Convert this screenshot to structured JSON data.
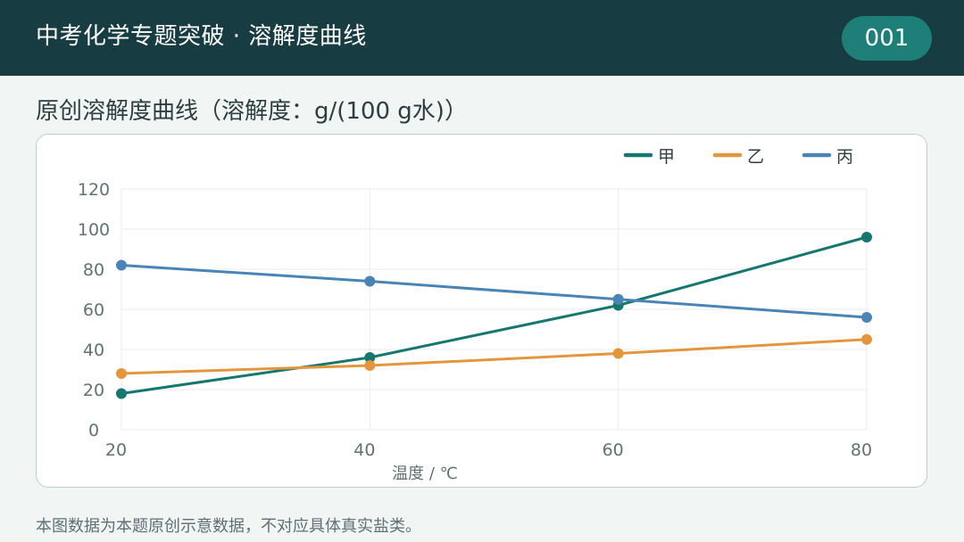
{
  "header": {
    "title": "中考化学专题突破 · 溶解度曲线",
    "page_number": "001"
  },
  "chart_heading": "原创溶解度曲线（溶解度：g/(100 g水)）",
  "footnote": "本图数据为本题原创示意数据，不对应具体真实盐类。",
  "colors": {
    "header_bg": "#173c42",
    "badge_bg": "#1d7f78",
    "series_jia": "#17776e",
    "series_yi": "#e2973d",
    "series_bing": "#4a84b4"
  },
  "chart_data": {
    "type": "line",
    "x": [
      20,
      40,
      60,
      80
    ],
    "xlabel": "温度 / ℃",
    "ylabel": "",
    "xlim": [
      20,
      80
    ],
    "ylim": [
      0,
      120
    ],
    "xticks": [
      "20",
      "40",
      "60",
      "80"
    ],
    "yticks": [
      "0",
      "20",
      "40",
      "60",
      "80",
      "100",
      "120"
    ],
    "grid": true,
    "legend": "top-right",
    "series": [
      {
        "name": "甲",
        "values": [
          18,
          36,
          62,
          96
        ],
        "color": "#17776e"
      },
      {
        "name": "乙",
        "values": [
          28,
          32,
          38,
          45
        ],
        "color": "#e2973d"
      },
      {
        "name": "丙",
        "values": [
          82,
          74,
          65,
          56
        ],
        "color": "#4a84b4"
      }
    ]
  }
}
